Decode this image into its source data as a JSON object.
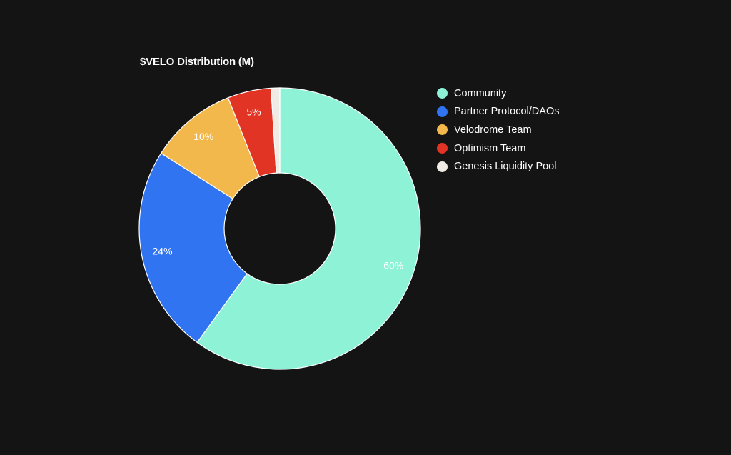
{
  "chart_data": {
    "type": "pie",
    "title": "$VELO Distribution (M)",
    "donut": true,
    "legend_position": "right",
    "series": [
      {
        "name": "Community",
        "value": 60,
        "label": "60%",
        "color": "#8ef3d6"
      },
      {
        "name": "Partner Protocol/DAOs",
        "value": 24,
        "label": "24%",
        "color": "#3074f2"
      },
      {
        "name": "Velodrome Team",
        "value": 10,
        "label": "10%",
        "color": "#f2b84b"
      },
      {
        "name": "Optimism Team",
        "value": 5,
        "label": "5%",
        "color": "#e23424"
      },
      {
        "name": "Genesis Liquidity Pool",
        "value": 1,
        "label": "",
        "color": "#f1ebe6"
      }
    ]
  }
}
